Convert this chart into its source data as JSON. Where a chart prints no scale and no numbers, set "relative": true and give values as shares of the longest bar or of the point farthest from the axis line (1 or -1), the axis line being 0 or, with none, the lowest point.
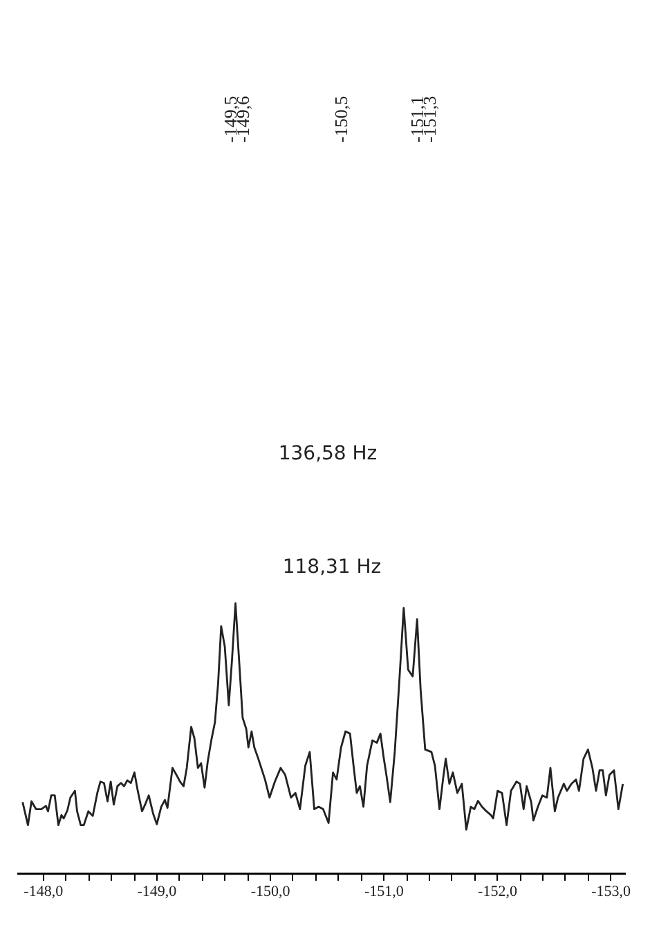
{
  "chart_data": {
    "type": "line",
    "relative": true,
    "color": "#222222",
    "tick_labels": "x",
    "grid": false,
    "xlim": [
      -147.77,
      -153.13
    ],
    "xticks": [
      {
        "value": -148,
        "label": "-148,0"
      },
      {
        "value": -148.2,
        "label": null
      },
      {
        "value": -148.4,
        "label": null
      },
      {
        "value": -148.6,
        "label": null
      },
      {
        "value": -148.8,
        "label": null
      },
      {
        "value": -149,
        "label": "-149,0"
      },
      {
        "value": -149.2,
        "label": null
      },
      {
        "value": -149.4,
        "label": null
      },
      {
        "value": -149.6,
        "label": null
      },
      {
        "value": -149.8,
        "label": null
      },
      {
        "value": -150,
        "label": "-150,0"
      },
      {
        "value": -150.2,
        "label": null
      },
      {
        "value": -150.4,
        "label": null
      },
      {
        "value": -150.6,
        "label": null
      },
      {
        "value": -150.8,
        "label": null
      },
      {
        "value": -151,
        "label": "-151,0"
      },
      {
        "value": -151.2,
        "label": null
      },
      {
        "value": -151.4,
        "label": null
      },
      {
        "value": -151.6,
        "label": null
      },
      {
        "value": -151.8,
        "label": null
      },
      {
        "value": -152,
        "label": "-152,0"
      },
      {
        "value": -152.2,
        "label": null
      },
      {
        "value": -152.4,
        "label": null
      },
      {
        "value": -152.6,
        "label": null
      },
      {
        "value": -152.8,
        "label": null
      },
      {
        "value": -153,
        "label": "-153,0"
      }
    ],
    "x": [
      -147.823,
      -147.87,
      -147.901,
      -147.941,
      -147.988,
      -148.028,
      -148.047,
      -148.075,
      -148.106,
      -148.138,
      -148.165,
      -148.185,
      -148.217,
      -148.244,
      -148.284,
      -148.303,
      -148.335,
      -148.362,
      -148.402,
      -148.441,
      -148.481,
      -148.508,
      -148.54,
      -148.571,
      -148.599,
      -148.626,
      -148.658,
      -148.69,
      -148.717,
      -148.745,
      -148.776,
      -148.808,
      -148.835,
      -148.875,
      -148.902,
      -148.934,
      -148.973,
      -149.005,
      -149.044,
      -149.076,
      -149.099,
      -149.143,
      -149.178,
      -149.21,
      -149.241,
      -149.269,
      -149.308,
      -149.336,
      -149.367,
      -149.395,
      -149.426,
      -149.454,
      -149.485,
      -149.517,
      -149.545,
      -149.572,
      -149.604,
      -149.639,
      -149.667,
      -149.698,
      -149.73,
      -149.761,
      -149.793,
      -149.812,
      -149.84,
      -149.864,
      -149.899,
      -149.919,
      -149.958,
      -149.998,
      -150.045,
      -150.096,
      -150.136,
      -150.187,
      -150.226,
      -150.266,
      -150.313,
      -150.352,
      -150.392,
      -150.431,
      -150.47,
      -150.518,
      -150.557,
      -150.589,
      -150.628,
      -150.667,
      -150.707,
      -150.738,
      -150.766,
      -150.794,
      -150.825,
      -150.857,
      -150.904,
      -150.943,
      -150.975,
      -151.002,
      -151.03,
      -151.061,
      -151.101,
      -151.14,
      -151.18,
      -151.219,
      -151.259,
      -151.298,
      -151.329,
      -151.369,
      -151.424,
      -151.455,
      -151.495,
      -151.526,
      -151.55,
      -151.582,
      -151.613,
      -151.652,
      -151.692,
      -151.731,
      -151.771,
      -151.802,
      -151.834,
      -151.869,
      -151.909,
      -151.948,
      -151.968,
      -152.007,
      -152.046,
      -152.086,
      -152.125,
      -152.173,
      -152.204,
      -152.236,
      -152.263,
      -152.303,
      -152.322,
      -152.362,
      -152.401,
      -152.441,
      -152.472,
      -152.511,
      -152.539,
      -152.59,
      -152.618,
      -152.657,
      -152.697,
      -152.724,
      -152.764,
      -152.803,
      -152.842,
      -152.874,
      -152.905,
      -152.933,
      -152.961,
      -152.992,
      -153.032,
      -153.071,
      -153.11
    ],
    "values": [
      0.263,
      0.178,
      0.266,
      0.237,
      0.237,
      0.249,
      0.229,
      0.288,
      0.288,
      0.178,
      0.215,
      0.203,
      0.232,
      0.28,
      0.305,
      0.229,
      0.178,
      0.178,
      0.229,
      0.212,
      0.297,
      0.339,
      0.334,
      0.266,
      0.339,
      0.254,
      0.322,
      0.334,
      0.322,
      0.344,
      0.334,
      0.373,
      0.31,
      0.229,
      0.254,
      0.288,
      0.22,
      0.181,
      0.246,
      0.271,
      0.242,
      0.39,
      0.364,
      0.339,
      0.322,
      0.39,
      0.542,
      0.5,
      0.39,
      0.407,
      0.317,
      0.415,
      0.492,
      0.559,
      0.703,
      0.915,
      0.839,
      0.622,
      0.788,
      1,
      0.788,
      0.576,
      0.534,
      0.466,
      0.525,
      0.466,
      0.424,
      0.398,
      0.347,
      0.28,
      0.339,
      0.39,
      0.364,
      0.28,
      0.297,
      0.237,
      0.398,
      0.449,
      0.237,
      0.246,
      0.237,
      0.186,
      0.373,
      0.347,
      0.466,
      0.525,
      0.517,
      0.398,
      0.297,
      0.322,
      0.246,
      0.398,
      0.492,
      0.483,
      0.517,
      0.432,
      0.356,
      0.263,
      0.449,
      0.703,
      0.983,
      0.754,
      0.729,
      0.941,
      0.678,
      0.458,
      0.449,
      0.398,
      0.237,
      0.347,
      0.424,
      0.331,
      0.373,
      0.297,
      0.331,
      0.161,
      0.246,
      0.237,
      0.268,
      0.246,
      0.229,
      0.215,
      0.203,
      0.305,
      0.297,
      0.178,
      0.305,
      0.339,
      0.331,
      0.237,
      0.322,
      0.263,
      0.195,
      0.246,
      0.288,
      0.28,
      0.39,
      0.229,
      0.28,
      0.331,
      0.305,
      0.331,
      0.347,
      0.305,
      0.424,
      0.458,
      0.39,
      0.305,
      0.381,
      0.381,
      0.288,
      0.364,
      0.381,
      0.237,
      0.331
    ],
    "annotations": [
      "-149,5",
      "-149,6",
      "-150,5",
      "-151,1",
      "-151,3",
      "136,58 Hz",
      "118,31 Hz"
    ]
  }
}
